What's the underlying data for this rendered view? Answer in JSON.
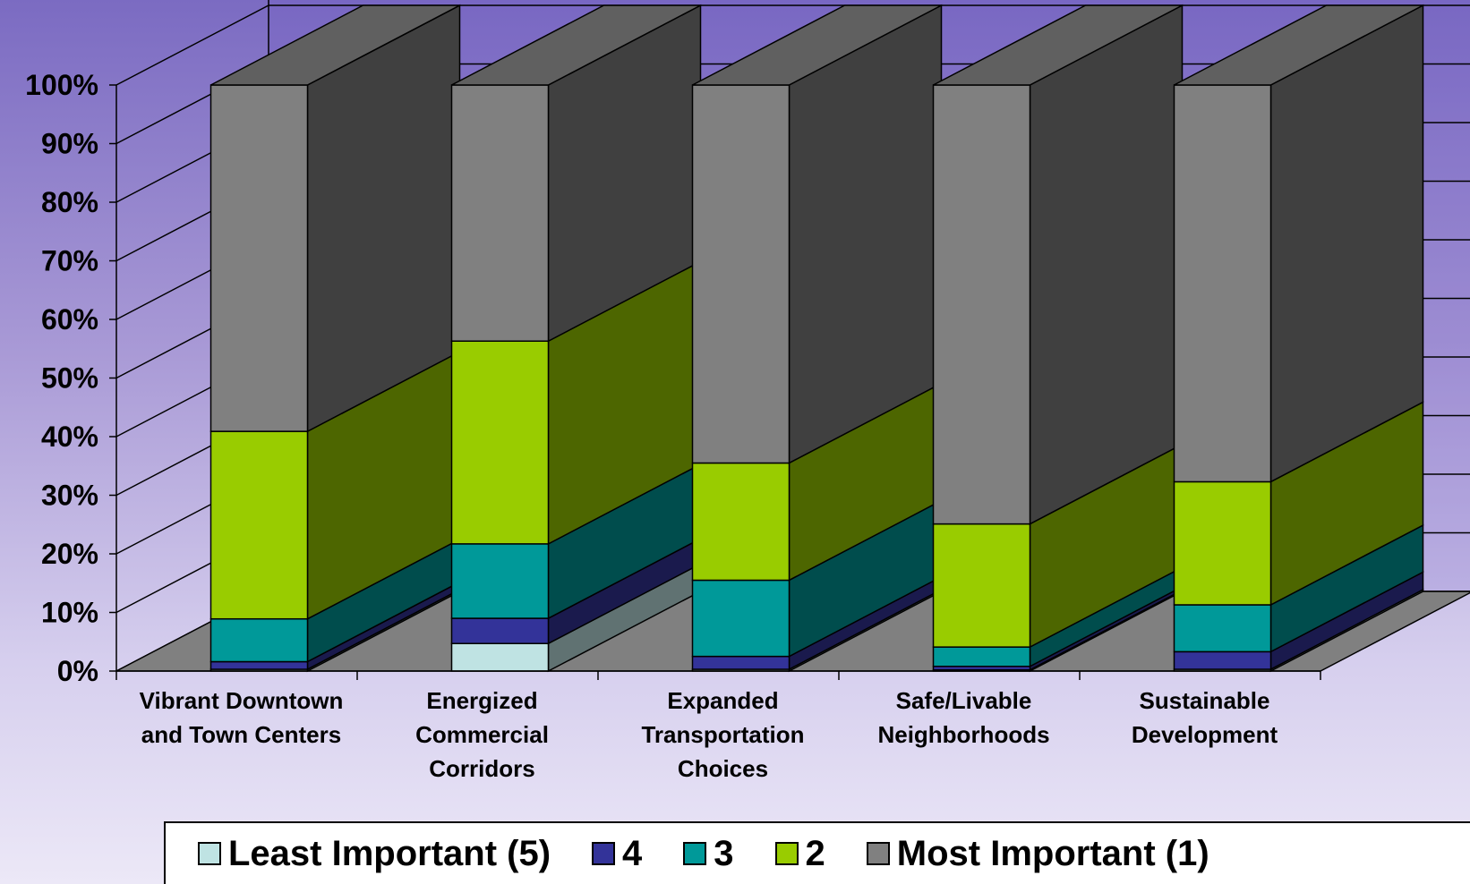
{
  "chart_data": {
    "type": "bar",
    "stacked": "100%",
    "three_d": true,
    "categories": [
      "Vibrant Downtown and Town Centers",
      "Energized Commercial Corridors",
      "Expanded Transportation Choices",
      "Safe/Livable Neighborhoods",
      "Sustainable Development"
    ],
    "category_lines": [
      [
        "Vibrant Downtown",
        "and Town Centers"
      ],
      [
        "Energized",
        "Commercial",
        "Corridors"
      ],
      [
        "Expanded",
        "Transportation",
        "Choices"
      ],
      [
        "Safe/Livable",
        "Neighborhoods"
      ],
      [
        "Sustainable",
        "Development"
      ]
    ],
    "series": [
      {
        "name": "Least Important (5)",
        "color": "#bfe3e3",
        "values": [
          0.3,
          4.7,
          0.3,
          0.2,
          0.3
        ]
      },
      {
        "name": "4",
        "color": "#333399",
        "values": [
          1.3,
          4.3,
          2.2,
          0.6,
          3.0
        ]
      },
      {
        "name": "3",
        "color": "#009999",
        "values": [
          7.3,
          12.7,
          13.0,
          3.3,
          8.0
        ]
      },
      {
        "name": "2",
        "color": "#99cc00",
        "values": [
          32.0,
          34.6,
          20.0,
          21.0,
          21.0
        ]
      },
      {
        "name": "Most Important (1)",
        "color": "#808080",
        "values": [
          59.1,
          43.7,
          64.5,
          74.9,
          67.7
        ]
      }
    ],
    "yticks": [
      "0%",
      "10%",
      "20%",
      "30%",
      "40%",
      "50%",
      "60%",
      "70%",
      "80%",
      "90%",
      "100%"
    ],
    "ylim": [
      0,
      100
    ],
    "grid": true,
    "legend_position": "bottom"
  },
  "legend": {
    "items": [
      {
        "label": "Least Important (5)",
        "color": "#bfe3e3"
      },
      {
        "label": "4",
        "color": "#333399"
      },
      {
        "label": "3",
        "color": "#009999"
      },
      {
        "label": "2",
        "color": "#99cc00"
      },
      {
        "label": "Most Important (1)",
        "color": "#808080"
      }
    ]
  }
}
